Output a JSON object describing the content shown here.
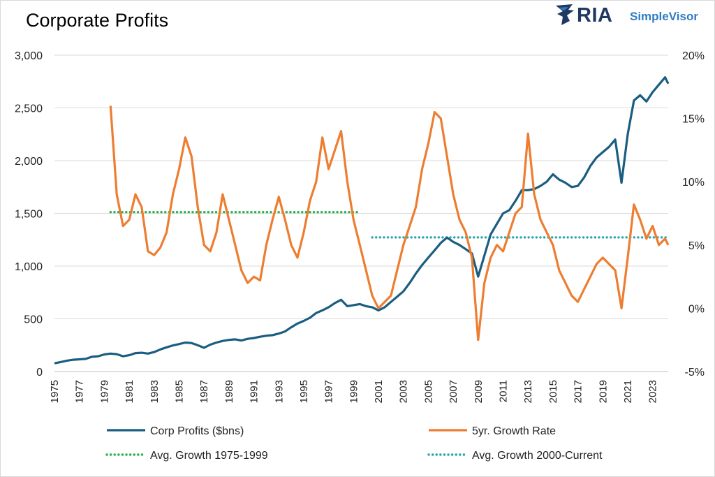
{
  "chart_data": {
    "type": "line",
    "title": "Corporate Profits",
    "brand": {
      "name": "RIA",
      "product": "SimpleVisor",
      "color": "#1f3a60",
      "accent": "#2e7cc4"
    },
    "left_axis": {
      "min": 0,
      "max": 3000,
      "ticks": [
        "0",
        "500",
        "1,000",
        "1,500",
        "2,000",
        "2,500",
        "3,000"
      ],
      "tick_values": [
        0,
        500,
        1000,
        1500,
        2000,
        2500,
        3000
      ]
    },
    "right_axis": {
      "min": -5,
      "max": 20,
      "ticks": [
        "-5%",
        "0%",
        "5%",
        "10%",
        "15%",
        "20%"
      ],
      "tick_values": [
        -5,
        0,
        5,
        10,
        15,
        20
      ]
    },
    "x_axis": {
      "min": 1975,
      "max": 2024.25,
      "ticks": [
        "1975",
        "1977",
        "1979",
        "1981",
        "1983",
        "1985",
        "1987",
        "1989",
        "1991",
        "1993",
        "1995",
        "1997",
        "1999",
        "2001",
        "2003",
        "2005",
        "2007",
        "2009",
        "2011",
        "2013",
        "2015",
        "2017",
        "2019",
        "2021",
        "2023"
      ],
      "tick_values": [
        1975,
        1977,
        1979,
        1981,
        1983,
        1985,
        1987,
        1989,
        1991,
        1993,
        1995,
        1997,
        1999,
        2001,
        2003,
        2005,
        2007,
        2009,
        2011,
        2013,
        2015,
        2017,
        2019,
        2021,
        2023
      ]
    },
    "grid": "horizontal",
    "legend_position": "bottom",
    "series": [
      {
        "name": "Corp Profits ($bns)",
        "axis": "left",
        "color": "#1b5d80",
        "style": "solid",
        "points": [
          [
            1975,
            78
          ],
          [
            1975.5,
            90
          ],
          [
            1976,
            103
          ],
          [
            1976.5,
            112
          ],
          [
            1977,
            116
          ],
          [
            1977.5,
            120
          ],
          [
            1978,
            140
          ],
          [
            1978.5,
            145
          ],
          [
            1979,
            162
          ],
          [
            1979.5,
            170
          ],
          [
            1980,
            165
          ],
          [
            1980.5,
            145
          ],
          [
            1981,
            155
          ],
          [
            1981.5,
            175
          ],
          [
            1982,
            178
          ],
          [
            1982.5,
            170
          ],
          [
            1983,
            185
          ],
          [
            1983.5,
            210
          ],
          [
            1984,
            230
          ],
          [
            1984.5,
            248
          ],
          [
            1985,
            260
          ],
          [
            1985.5,
            275
          ],
          [
            1986,
            270
          ],
          [
            1986.5,
            250
          ],
          [
            1987,
            225
          ],
          [
            1987.5,
            255
          ],
          [
            1988,
            275
          ],
          [
            1988.5,
            290
          ],
          [
            1989,
            300
          ],
          [
            1989.5,
            305
          ],
          [
            1990,
            295
          ],
          [
            1990.5,
            310
          ],
          [
            1991,
            318
          ],
          [
            1991.5,
            330
          ],
          [
            1992,
            340
          ],
          [
            1992.5,
            345
          ],
          [
            1993,
            360
          ],
          [
            1993.5,
            380
          ],
          [
            1994,
            420
          ],
          [
            1994.5,
            455
          ],
          [
            1995,
            480
          ],
          [
            1995.5,
            510
          ],
          [
            1996,
            555
          ],
          [
            1996.5,
            580
          ],
          [
            1997,
            610
          ],
          [
            1997.5,
            650
          ],
          [
            1998,
            680
          ],
          [
            1998.5,
            620
          ],
          [
            1999,
            630
          ],
          [
            1999.5,
            640
          ],
          [
            2000,
            620
          ],
          [
            2000.5,
            610
          ],
          [
            2001,
            580
          ],
          [
            2001.5,
            610
          ],
          [
            2002,
            660
          ],
          [
            2002.5,
            710
          ],
          [
            2003,
            760
          ],
          [
            2003.5,
            840
          ],
          [
            2004,
            930
          ],
          [
            2004.5,
            1010
          ],
          [
            2005,
            1080
          ],
          [
            2005.5,
            1150
          ],
          [
            2006,
            1220
          ],
          [
            2006.5,
            1270
          ],
          [
            2007,
            1230
          ],
          [
            2007.5,
            1200
          ],
          [
            2008,
            1160
          ],
          [
            2008.5,
            1120
          ],
          [
            2009,
            900
          ],
          [
            2009.5,
            1100
          ],
          [
            2010,
            1300
          ],
          [
            2010.5,
            1400
          ],
          [
            2011,
            1500
          ],
          [
            2011.5,
            1530
          ],
          [
            2012,
            1620
          ],
          [
            2012.5,
            1720
          ],
          [
            2013,
            1720
          ],
          [
            2013.5,
            1730
          ],
          [
            2014,
            1760
          ],
          [
            2014.5,
            1800
          ],
          [
            2015,
            1870
          ],
          [
            2015.5,
            1820
          ],
          [
            2016,
            1790
          ],
          [
            2016.5,
            1750
          ],
          [
            2017,
            1760
          ],
          [
            2017.5,
            1840
          ],
          [
            2018,
            1950
          ],
          [
            2018.5,
            2030
          ],
          [
            2019,
            2080
          ],
          [
            2019.5,
            2130
          ],
          [
            2020,
            2200
          ],
          [
            2020.5,
            1790
          ],
          [
            2021,
            2250
          ],
          [
            2021.5,
            2570
          ],
          [
            2022,
            2620
          ],
          [
            2022.5,
            2560
          ],
          [
            2023,
            2650
          ],
          [
            2023.5,
            2720
          ],
          [
            2024,
            2790
          ],
          [
            2024.25,
            2730
          ]
        ]
      },
      {
        "name": "5yr. Growth Rate",
        "axis": "right",
        "color": "#ed7d31",
        "style": "solid",
        "points": [
          [
            1979.5,
            16
          ],
          [
            1980,
            9
          ],
          [
            1980.5,
            6.5
          ],
          [
            1981,
            7
          ],
          [
            1981.5,
            9
          ],
          [
            1982,
            8
          ],
          [
            1982.5,
            4.5
          ],
          [
            1983,
            4.2
          ],
          [
            1983.5,
            4.8
          ],
          [
            1984,
            6
          ],
          [
            1984.5,
            9
          ],
          [
            1985,
            11
          ],
          [
            1985.5,
            13.5
          ],
          [
            1986,
            12
          ],
          [
            1986.5,
            8
          ],
          [
            1987,
            5
          ],
          [
            1987.5,
            4.5
          ],
          [
            1988,
            6
          ],
          [
            1988.5,
            9
          ],
          [
            1989,
            7
          ],
          [
            1989.5,
            5
          ],
          [
            1990,
            3
          ],
          [
            1990.5,
            2
          ],
          [
            1991,
            2.5
          ],
          [
            1991.5,
            2.2
          ],
          [
            1992,
            5
          ],
          [
            1992.5,
            7
          ],
          [
            1993,
            8.8
          ],
          [
            1993.5,
            7
          ],
          [
            1994,
            5
          ],
          [
            1994.5,
            4
          ],
          [
            1995,
            6
          ],
          [
            1995.5,
            8.5
          ],
          [
            1996,
            10
          ],
          [
            1996.5,
            13.5
          ],
          [
            1997,
            11
          ],
          [
            1997.5,
            12.5
          ],
          [
            1998,
            14
          ],
          [
            1998.5,
            10
          ],
          [
            1999,
            7
          ],
          [
            1999.5,
            5
          ],
          [
            2000,
            3
          ],
          [
            2000.5,
            1
          ],
          [
            2001,
            0
          ],
          [
            2001.5,
            0.5
          ],
          [
            2002,
            1
          ],
          [
            2002.5,
            3
          ],
          [
            2003,
            5
          ],
          [
            2003.5,
            6.5
          ],
          [
            2004,
            8
          ],
          [
            2004.5,
            11
          ],
          [
            2005,
            13
          ],
          [
            2005.5,
            15.5
          ],
          [
            2006,
            15
          ],
          [
            2006.5,
            12
          ],
          [
            2007,
            9
          ],
          [
            2007.5,
            7
          ],
          [
            2008,
            6
          ],
          [
            2008.5,
            4
          ],
          [
            2009,
            -2.5
          ],
          [
            2009.5,
            2
          ],
          [
            2010,
            4
          ],
          [
            2010.5,
            5
          ],
          [
            2011,
            4.5
          ],
          [
            2011.5,
            6
          ],
          [
            2012,
            7.5
          ],
          [
            2012.5,
            8
          ],
          [
            2013,
            13.8
          ],
          [
            2013.5,
            9
          ],
          [
            2014,
            7
          ],
          [
            2014.5,
            6
          ],
          [
            2015,
            5
          ],
          [
            2015.5,
            3
          ],
          [
            2016,
            2
          ],
          [
            2016.5,
            1
          ],
          [
            2017,
            0.5
          ],
          [
            2017.5,
            1.5
          ],
          [
            2018,
            2.5
          ],
          [
            2018.5,
            3.5
          ],
          [
            2019,
            4
          ],
          [
            2019.5,
            3.5
          ],
          [
            2020,
            3
          ],
          [
            2020.5,
            0
          ],
          [
            2021,
            4
          ],
          [
            2021.5,
            8.2
          ],
          [
            2022,
            7
          ],
          [
            2022.5,
            5.5
          ],
          [
            2023,
            6.5
          ],
          [
            2023.5,
            5
          ],
          [
            2024,
            5.5
          ],
          [
            2024.25,
            5
          ]
        ]
      },
      {
        "name": "Avg. Growth 1975-1999",
        "axis": "right",
        "color": "#2db34a",
        "style": "dotted",
        "points": [
          [
            1979.5,
            7.6
          ],
          [
            1999.5,
            7.6
          ]
        ]
      },
      {
        "name": "Avg. Growth 2000-Current",
        "axis": "right",
        "color": "#2aa5b5",
        "style": "dotted",
        "points": [
          [
            2000.5,
            5.6
          ],
          [
            2024.25,
            5.6
          ]
        ]
      }
    ]
  }
}
